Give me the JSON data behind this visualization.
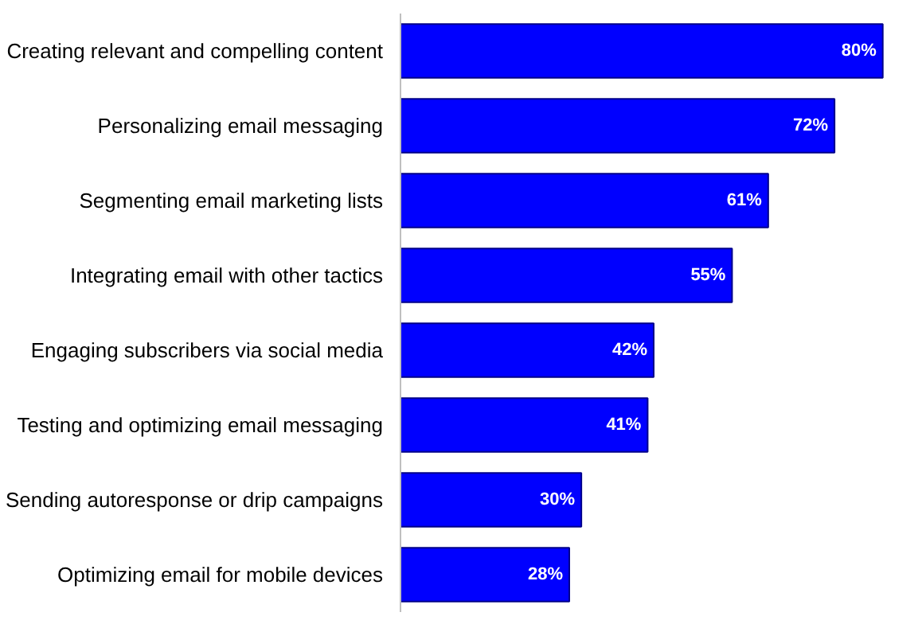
{
  "chart_data": {
    "type": "bar",
    "orientation": "horizontal",
    "categories": [
      "Creating relevant and compelling content",
      "Personalizing email messaging",
      "Segmenting email marketing lists",
      "Integrating email with other tactics",
      "Engaging subscribers via social media",
      "Testing and optimizing email messaging",
      "Sending autoresponse or drip campaigns",
      "Optimizing email for mobile devices"
    ],
    "values": [
      80,
      72,
      61,
      55,
      42,
      41,
      30,
      28
    ],
    "value_labels": [
      "80%",
      "72%",
      "61%",
      "55%",
      "42%",
      "41%",
      "30%",
      "28%"
    ],
    "color": "#0000ff",
    "grid": false
  }
}
